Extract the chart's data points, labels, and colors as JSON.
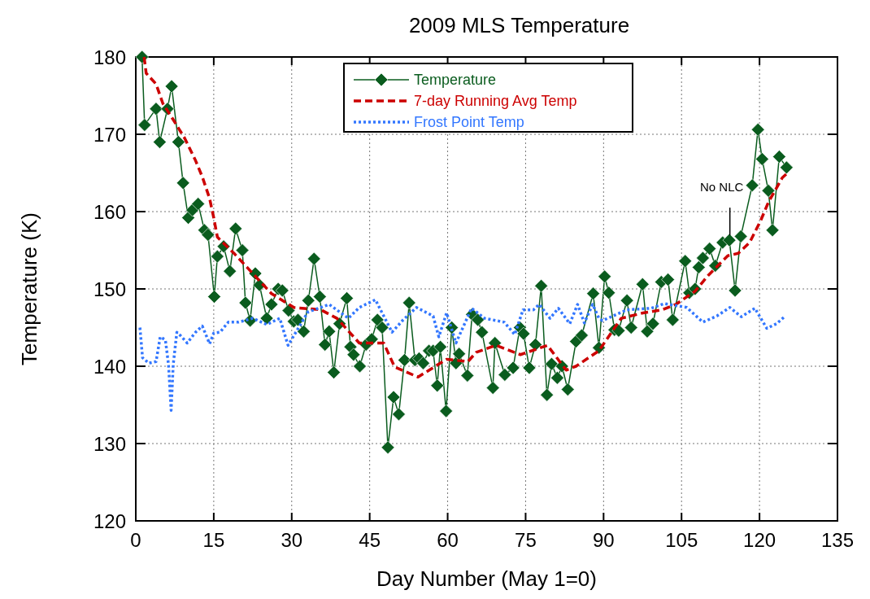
{
  "chart_data": {
    "type": "line",
    "title": "2009 MLS Temperature",
    "xlabel": "Day Number (May 1=0)",
    "ylabel": "Temperature (K)",
    "xlim": [
      0,
      135
    ],
    "xticks": [
      0,
      15,
      30,
      45,
      60,
      75,
      90,
      105,
      120,
      135
    ],
    "ylim": [
      120,
      180
    ],
    "yticks": [
      120,
      130,
      140,
      150,
      160,
      170,
      180
    ],
    "grid": true,
    "legend": "top",
    "annotations": [
      {
        "text": "No NLC",
        "x": 114.3,
        "y": 156.3
      }
    ],
    "series": [
      {
        "name": "Temperature",
        "color": "#0a5c1e",
        "marker": "diamond",
        "line_style": "solid",
        "x": [
          1.2,
          1.7,
          3.9,
          4.6,
          6.1,
          6.9,
          8.2,
          9.1,
          10.1,
          10.9,
          12.0,
          13.2,
          13.9,
          15.1,
          15.7,
          16.9,
          18.1,
          19.2,
          20.5,
          21.1,
          22.0,
          23.0,
          23.8,
          25.2,
          26.1,
          27.4,
          28.2,
          29.4,
          30.4,
          31.2,
          32.3,
          33.2,
          34.3,
          35.4,
          36.4,
          37.2,
          38.1,
          39.2,
          40.6,
          41.3,
          41.9,
          43.1,
          44.3,
          45.4,
          46.5,
          47.4,
          48.5,
          49.6,
          50.6,
          51.7,
          52.6,
          53.7,
          54.5,
          55.3,
          56.4,
          57.2,
          58.0,
          58.6,
          59.7,
          60.8,
          61.6,
          62.2,
          63.8,
          64.7,
          65.8,
          66.6,
          68.7,
          69.1,
          71.0,
          72.6,
          73.9,
          74.6,
          75.7,
          76.9,
          78.0,
          79.1,
          80.0,
          81.1,
          82.0,
          83.1,
          84.7,
          85.8,
          88.0,
          89.1,
          90.2,
          91.0,
          92.1,
          92.9,
          94.5,
          95.3,
          97.5,
          98.4,
          99.5,
          101.1,
          102.4,
          103.3,
          105.7,
          106.5,
          107.6,
          108.3,
          109.1,
          110.4,
          111.5,
          112.9,
          114.2,
          115.3,
          116.4,
          118.6,
          119.7,
          120.5,
          121.7,
          122.5,
          123.8,
          125.2
        ],
        "values": [
          180,
          171.2,
          173.3,
          169,
          173.3,
          176.2,
          169,
          163.7,
          159.2,
          160.2,
          161,
          157.6,
          157,
          149,
          154.2,
          155.5,
          152.3,
          157.8,
          155,
          148.2,
          145.9,
          152,
          150.5,
          146.2,
          148,
          150,
          149.8,
          147.2,
          145.8,
          146,
          144.5,
          148.5,
          153.9,
          149,
          142.8,
          144.5,
          139.2,
          145.5,
          148.8,
          142.5,
          141.5,
          140,
          142.8,
          143.5,
          146,
          145,
          129.5,
          136,
          133.8,
          140.8,
          148.2,
          140.8,
          141,
          140.4,
          142,
          142,
          137.5,
          142.5,
          134.2,
          145,
          140.4,
          141.6,
          138.8,
          146.7,
          146,
          144.4,
          137.2,
          143,
          138.9,
          139.8,
          145,
          144.2,
          139.8,
          142.8,
          150.4,
          136.3,
          140.3,
          138.5,
          140,
          137,
          143.2,
          144,
          149.4,
          142.4,
          151.6,
          149.5,
          144.7,
          144.6,
          148.5,
          145,
          150.6,
          144.5,
          145.5,
          150.9,
          151.2,
          146,
          153.6,
          149.5,
          150,
          152.8,
          154,
          155.2,
          153,
          156,
          156.3,
          149.8,
          156.8,
          163.4,
          170.6,
          166.8,
          162.7,
          157.6,
          167.1,
          165.7
        ]
      },
      {
        "name": "7-day Running Avg Temp",
        "color": "#cc0000",
        "marker": "none",
        "line_style": "dashed",
        "x": [
          1.6,
          2.0,
          3.9,
          5.2,
          7.2,
          9.4,
          11.5,
          12.8,
          14.2,
          15.0,
          15.7,
          18.9,
          21.4,
          26.1,
          30.4,
          35.6,
          38.7,
          43.0,
          47.7,
          49.8,
          54.3,
          59.8,
          63.9,
          65.5,
          69.3,
          74.0,
          79.2,
          82.8,
          84.7,
          89.1,
          93.4,
          97.6,
          101.3,
          103.9,
          107.6,
          110.2,
          113.9,
          115.9,
          118.1,
          120.2,
          121.7,
          124.4,
          125.4
        ],
        "values": [
          180,
          177.9,
          176.5,
          174,
          171.9,
          169.5,
          166.6,
          164.5,
          161.7,
          159.2,
          156.7,
          154.6,
          152.8,
          149.4,
          147.6,
          147.3,
          146.2,
          143,
          143,
          139.9,
          138.6,
          140.9,
          140.6,
          141.8,
          142.7,
          141.5,
          142.7,
          139.5,
          140,
          142,
          146.2,
          146.9,
          147.3,
          148,
          149.7,
          151.8,
          154.3,
          154.6,
          156,
          158.8,
          161.2,
          164.4,
          165
        ]
      },
      {
        "name": "Frost Point Temp",
        "color": "#3377ff",
        "marker": "none",
        "line_style": "dotted",
        "x": [
          0.8,
          1.3,
          2.5,
          3.9,
          4.7,
          5.7,
          6.3,
          6.8,
          7.2,
          7.9,
          8.7,
          9.9,
          11.5,
          12.8,
          14.2,
          15.0,
          16.2,
          17.8,
          19.8,
          22.5,
          25.2,
          27.7,
          29.3,
          33.1,
          37.2,
          40.9,
          43.0,
          46.1,
          49.3,
          51.3,
          54.0,
          57.2,
          58.3,
          59.8,
          61.6,
          64.6,
          67.1,
          70.9,
          72.9,
          74.5,
          76.5,
          77.6,
          79.7,
          81.3,
          83.5,
          85.0,
          86.3,
          87.9,
          89.1,
          89.8,
          94.5,
          99.2,
          101.7,
          106.0,
          109.1,
          111.8,
          114.3,
          116.5,
          119.1,
          121.4,
          123.3,
          124.8
        ],
        "values": [
          145,
          141.1,
          140.4,
          140.6,
          143.8,
          143.4,
          140.2,
          134.3,
          140.2,
          144.4,
          143.9,
          143,
          144.4,
          145.2,
          142.9,
          144.3,
          144.4,
          145.7,
          145.7,
          146.2,
          145.4,
          146.2,
          142.7,
          147,
          148,
          146.2,
          147.6,
          148.6,
          144.4,
          145.9,
          147.6,
          146.5,
          143.8,
          146.9,
          143,
          147.5,
          146.2,
          145.7,
          144.1,
          147.3,
          147.3,
          148,
          146.2,
          147.5,
          145.5,
          148,
          145.6,
          148,
          146.2,
          145.9,
          147.3,
          147.5,
          148.1,
          147.6,
          145.7,
          146.5,
          147.6,
          146.4,
          147.5,
          144.9,
          145.5,
          146.4
        ]
      }
    ]
  }
}
